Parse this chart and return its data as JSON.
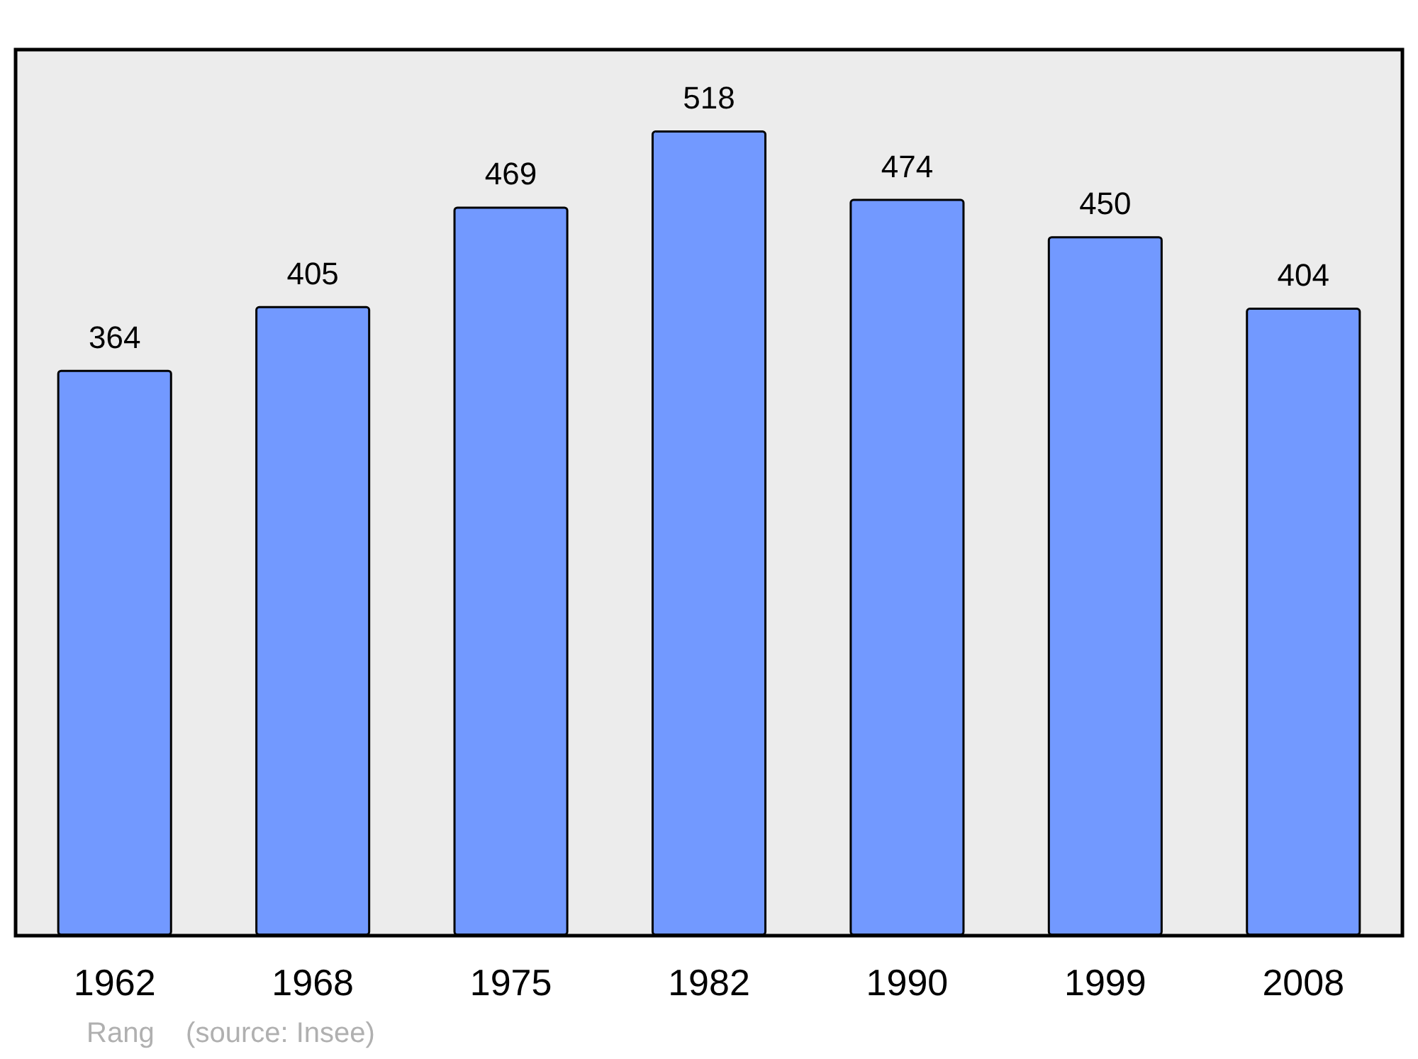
{
  "chart_data": {
    "type": "bar",
    "categories": [
      "1962",
      "1968",
      "1975",
      "1982",
      "1990",
      "1999",
      "2008"
    ],
    "values": [
      364,
      405,
      469,
      518,
      474,
      450,
      404
    ],
    "color": "#7299ff",
    "ylim": [
      0,
      570
    ],
    "tick_labels": "x",
    "data_labels": true,
    "annotations": [
      "Rang    (source: Insee)"
    ]
  }
}
